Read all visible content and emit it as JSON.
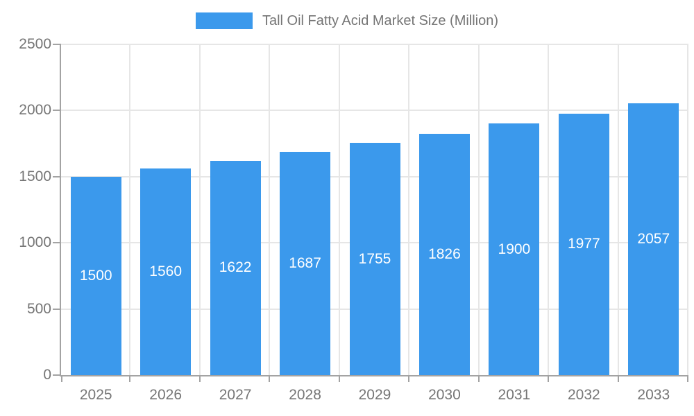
{
  "legend": {
    "label": "Tall Oil Fatty Acid Market Size (Million)"
  },
  "chart_data": {
    "type": "bar",
    "title": "Tall Oil Fatty Acid Market Size (Million)",
    "categories": [
      "2025",
      "2026",
      "2027",
      "2028",
      "2029",
      "2030",
      "2031",
      "2032",
      "2033"
    ],
    "values": [
      1500,
      1560,
      1622,
      1687,
      1755,
      1826,
      1900,
      1977,
      2057
    ],
    "xlabel": "",
    "ylabel": "",
    "ylim": [
      0,
      2500
    ],
    "yticks": [
      0,
      500,
      1000,
      1500,
      2000,
      2500
    ],
    "grid": true,
    "legend_position": "top",
    "value_labels": "inside-center",
    "colors": {
      "bar": "#3B99EC",
      "value_label": "#ffffff",
      "axis_text": "#757575",
      "grid_line": "#e6e6e6",
      "axis_line": "#a3a3a3"
    }
  }
}
